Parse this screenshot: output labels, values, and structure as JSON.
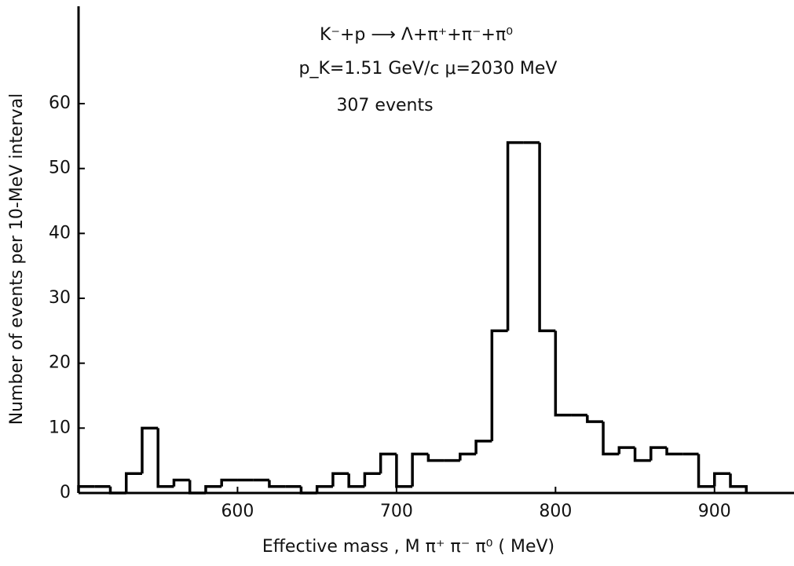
{
  "chart_data": {
    "type": "histogram",
    "annotations": [
      "K⁻+p ⟶ Λ+π⁺+π⁻+π⁰",
      "p_K=1.51 GeV/c  μ=2030 MeV",
      "307 events"
    ],
    "x_label": "Effective mass , M π⁺ π⁻ π⁰ ( MeV)",
    "y_label": "Number of events per 10-MeV interval",
    "bins": [
      500,
      510,
      520,
      530,
      540,
      550,
      560,
      570,
      580,
      590,
      600,
      610,
      620,
      630,
      640,
      650,
      660,
      670,
      680,
      690,
      700,
      710,
      720,
      730,
      740,
      750,
      760,
      770,
      780,
      790,
      800,
      810,
      820,
      830,
      840,
      850,
      860,
      870,
      880,
      890,
      900,
      910,
      920
    ],
    "values": [
      1,
      1,
      0,
      3,
      10,
      1,
      2,
      0,
      1,
      2,
      2,
      2,
      1,
      1,
      0,
      1,
      3,
      1,
      3,
      6,
      1,
      6,
      5,
      5,
      6,
      8,
      25,
      54,
      54,
      25,
      12,
      12,
      11,
      6,
      7,
      5,
      7,
      6,
      6,
      1,
      3,
      1
    ],
    "color": "#000000",
    "xlim": [
      500,
      950
    ],
    "xticks": [
      600,
      700,
      800,
      900
    ],
    "ylim": [
      0,
      75
    ],
    "yticks": [
      0,
      10,
      20,
      30,
      40,
      50,
      60
    ]
  }
}
